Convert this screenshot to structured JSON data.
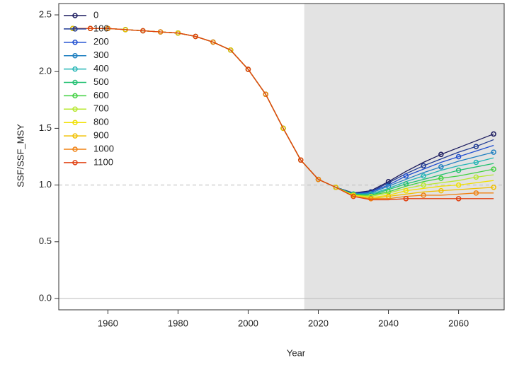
{
  "chart_data": {
    "type": "line",
    "x_label": "Year",
    "y_label": "SSF/SSF_MSY",
    "xlim": [
      1946,
      2073
    ],
    "ylim": [
      -0.1,
      2.6
    ],
    "xticks": [
      1960,
      1980,
      2000,
      2020,
      2040,
      2060
    ],
    "yticks": [
      {
        "value": 0,
        "label": "0.0"
      },
      0.5,
      {
        "value": 1,
        "label": "1.0"
      },
      1.5,
      {
        "value": 2,
        "label": "2.0"
      },
      2.5
    ],
    "projection_start": 2016,
    "reference_line": 1,
    "legend": "top-left",
    "x": [
      1950,
      1955,
      1960,
      1965,
      1970,
      1975,
      1980,
      1985,
      1990,
      1995,
      2000,
      2005,
      2010,
      2015,
      2020,
      2025,
      2030,
      2035,
      2040,
      2045,
      2050,
      2055,
      2060,
      2065,
      2070
    ],
    "series": [
      {
        "name": "0",
        "color": "#1a1a5e",
        "values": [
          2.38,
          2.38,
          2.38,
          2.37,
          2.36,
          2.35,
          2.34,
          2.31,
          2.26,
          2.19,
          2.02,
          1.8,
          1.5,
          1.22,
          1.05,
          0.98,
          0.93,
          0.95,
          1.03,
          1.12,
          1.2,
          1.27,
          1.33,
          1.39,
          1.45
        ]
      },
      {
        "name": "100",
        "color": "#1f3a93",
        "values": [
          2.38,
          2.38,
          2.38,
          2.37,
          2.36,
          2.35,
          2.34,
          2.31,
          2.26,
          2.19,
          2.02,
          1.8,
          1.5,
          1.22,
          1.05,
          0.98,
          0.93,
          0.94,
          1.02,
          1.1,
          1.17,
          1.23,
          1.29,
          1.34,
          1.4
        ]
      },
      {
        "name": "200",
        "color": "#1f4fd0",
        "values": [
          2.38,
          2.38,
          2.38,
          2.37,
          2.36,
          2.35,
          2.34,
          2.31,
          2.26,
          2.19,
          2.02,
          1.8,
          1.5,
          1.22,
          1.05,
          0.98,
          0.92,
          0.94,
          1.0,
          1.08,
          1.14,
          1.2,
          1.25,
          1.3,
          1.35
        ]
      },
      {
        "name": "300",
        "color": "#1e7fc0",
        "values": [
          2.38,
          2.38,
          2.38,
          2.37,
          2.36,
          2.35,
          2.34,
          2.31,
          2.26,
          2.19,
          2.02,
          1.8,
          1.5,
          1.22,
          1.05,
          0.98,
          0.92,
          0.93,
          0.99,
          1.05,
          1.11,
          1.16,
          1.21,
          1.25,
          1.29
        ]
      },
      {
        "name": "400",
        "color": "#22b5b5",
        "values": [
          2.38,
          2.38,
          2.38,
          2.37,
          2.36,
          2.35,
          2.34,
          2.31,
          2.26,
          2.19,
          2.02,
          1.8,
          1.5,
          1.22,
          1.05,
          0.98,
          0.92,
          0.92,
          0.97,
          1.03,
          1.08,
          1.13,
          1.17,
          1.2,
          1.24
        ]
      },
      {
        "name": "500",
        "color": "#20c070",
        "values": [
          2.38,
          2.38,
          2.38,
          2.37,
          2.36,
          2.35,
          2.34,
          2.31,
          2.26,
          2.19,
          2.02,
          1.8,
          1.5,
          1.22,
          1.05,
          0.98,
          0.92,
          0.91,
          0.96,
          1.01,
          1.05,
          1.09,
          1.13,
          1.16,
          1.19
        ]
      },
      {
        "name": "600",
        "color": "#40d040",
        "values": [
          2.38,
          2.38,
          2.38,
          2.37,
          2.36,
          2.35,
          2.34,
          2.31,
          2.26,
          2.19,
          2.02,
          1.8,
          1.5,
          1.22,
          1.05,
          0.98,
          0.91,
          0.91,
          0.94,
          0.99,
          1.03,
          1.06,
          1.08,
          1.11,
          1.14
        ]
      },
      {
        "name": "700",
        "color": "#b8e830",
        "values": [
          2.38,
          2.38,
          2.38,
          2.37,
          2.36,
          2.35,
          2.34,
          2.31,
          2.26,
          2.19,
          2.02,
          1.8,
          1.5,
          1.22,
          1.05,
          0.98,
          0.91,
          0.9,
          0.93,
          0.97,
          1.0,
          1.02,
          1.04,
          1.07,
          1.09
        ]
      },
      {
        "name": "800",
        "color": "#f0e000",
        "values": [
          2.38,
          2.38,
          2.38,
          2.37,
          2.36,
          2.35,
          2.34,
          2.31,
          2.26,
          2.19,
          2.02,
          1.8,
          1.5,
          1.22,
          1.05,
          0.98,
          0.91,
          0.89,
          0.91,
          0.95,
          0.97,
          0.99,
          1.0,
          1.02,
          1.04
        ]
      },
      {
        "name": "900",
        "color": "#f0c000",
        "values": [
          2.38,
          2.38,
          2.38,
          2.37,
          2.36,
          2.35,
          2.34,
          2.31,
          2.26,
          2.19,
          2.02,
          1.8,
          1.5,
          1.22,
          1.05,
          0.98,
          0.9,
          0.88,
          0.9,
          0.92,
          0.94,
          0.95,
          0.96,
          0.97,
          0.98
        ]
      },
      {
        "name": "1000",
        "color": "#f08010",
        "values": [
          2.38,
          2.38,
          2.38,
          2.37,
          2.36,
          2.35,
          2.34,
          2.31,
          2.26,
          2.19,
          2.02,
          1.8,
          1.5,
          1.22,
          1.05,
          0.98,
          0.9,
          0.88,
          0.88,
          0.9,
          0.91,
          0.91,
          0.92,
          0.93,
          0.93
        ]
      },
      {
        "name": "1100",
        "color": "#e04010",
        "values": [
          2.38,
          2.38,
          2.38,
          2.37,
          2.36,
          2.35,
          2.34,
          2.31,
          2.26,
          2.19,
          2.02,
          1.8,
          1.5,
          1.22,
          1.05,
          0.98,
          0.9,
          0.87,
          0.87,
          0.88,
          0.88,
          0.88,
          0.88,
          0.88,
          0.88
        ]
      }
    ]
  }
}
